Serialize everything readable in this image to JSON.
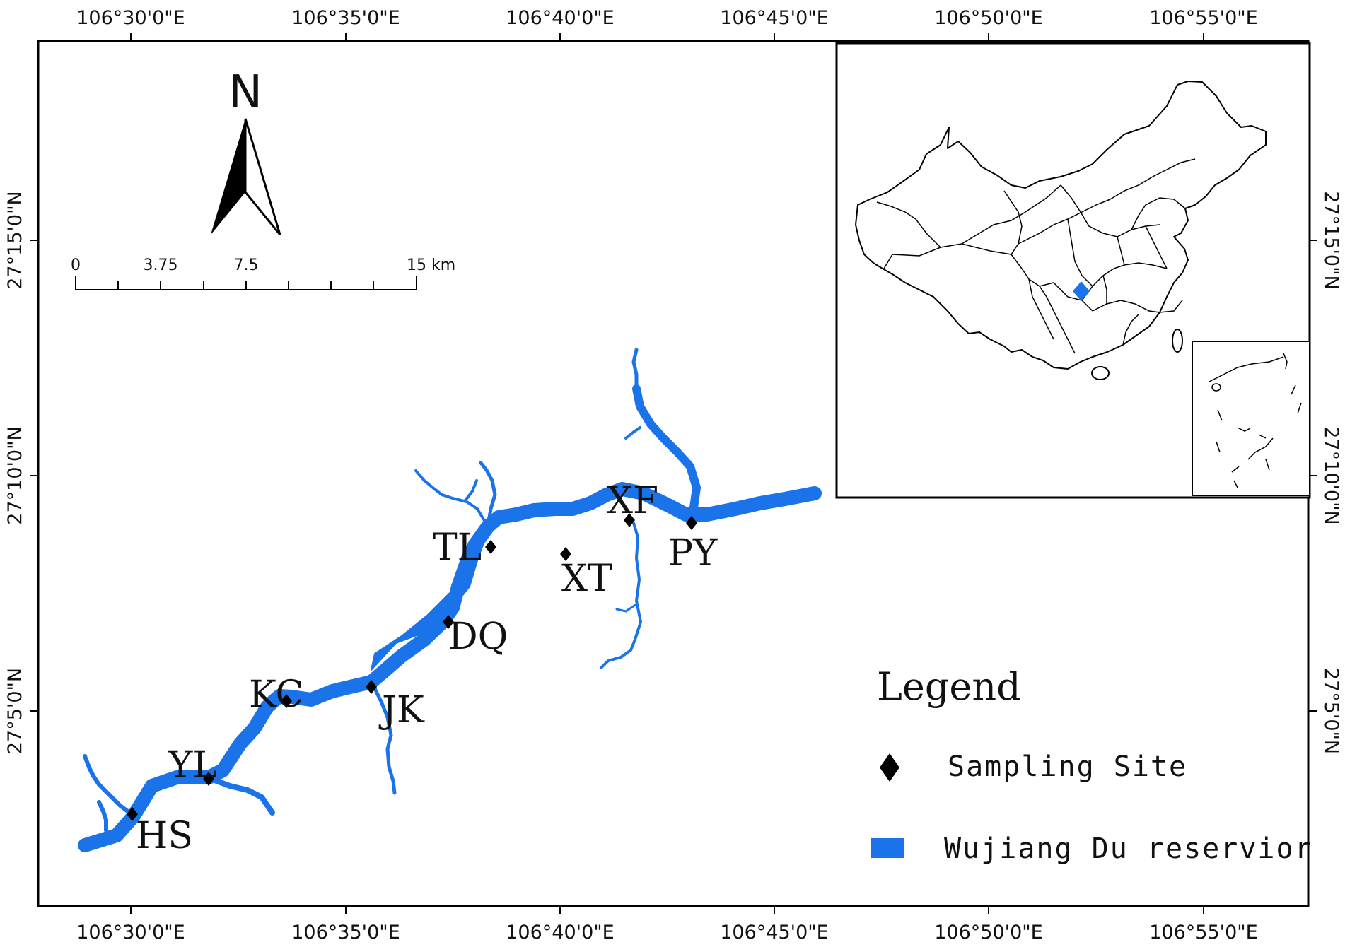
{
  "top_axis": [
    "106°30'0\"E",
    "106°35'0\"E",
    "106°40'0\"E",
    "106°45'0\"E",
    "106°50'0\"E",
    "106°55'0\"E"
  ],
  "bottom_axis": [
    "106°30'0\"E",
    "106°35'0\"E",
    "106°40'0\"E",
    "106°45'0\"E",
    "106°50'0\"E",
    "106°55'0\"E"
  ],
  "left_axis": [
    "27°15'0\"N",
    "27°10'0\"N",
    "27°5'0\"N"
  ],
  "right_axis": [
    "27°15'0\"N",
    "27°10'0\"N",
    "27°5'0\"N"
  ],
  "north_arrow": {
    "label": "N"
  },
  "scale_bar": {
    "labels": [
      "0",
      "3.75",
      "7.5",
      "15 km"
    ]
  },
  "sites": [
    {
      "code": "HS"
    },
    {
      "code": "YL"
    },
    {
      "code": "KC"
    },
    {
      "code": "JK"
    },
    {
      "code": "DQ"
    },
    {
      "code": "TL"
    },
    {
      "code": "XT"
    },
    {
      "code": "XF"
    },
    {
      "code": "PY"
    }
  ],
  "legend": {
    "title": "Legend",
    "items": [
      {
        "label": "Sampling  Site",
        "symbol": "diamond",
        "color": "#000000"
      },
      {
        "label": "Wujiang Du reservior",
        "symbol": "rect",
        "color": "#1a73e8"
      }
    ]
  },
  "colors": {
    "water": "#1a73e8",
    "frame": "#000000"
  },
  "inset": {
    "highlight_color": "#1a73e8"
  }
}
